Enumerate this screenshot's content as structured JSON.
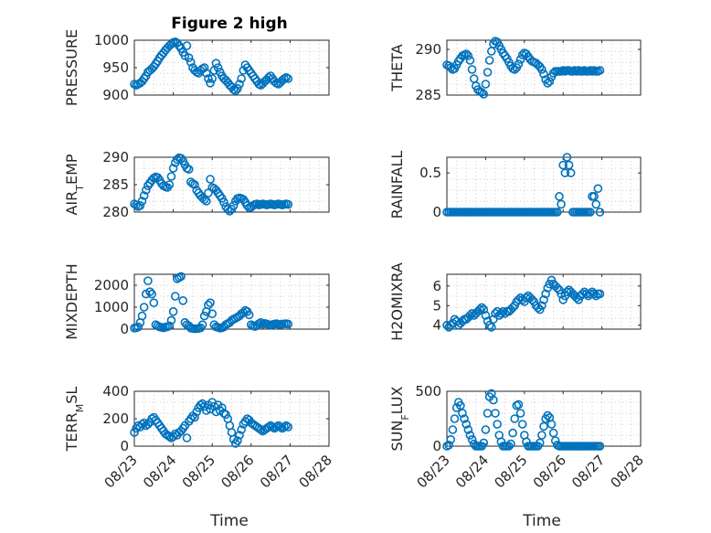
{
  "figure": {
    "title": "Figure 2 high",
    "marker_color": "#0072BD",
    "x_tick_labels": [
      "08/23",
      "08/24",
      "08/25",
      "08/26",
      "08/27",
      "08/28"
    ],
    "x_label": "Time"
  },
  "chart_data": [
    {
      "type": "scatter",
      "name": "pressure",
      "ylabel": "PRESSURE",
      "xlim": [
        0,
        5
      ],
      "ylim": [
        900,
        1000
      ],
      "yticks": [
        900,
        950,
        1000
      ],
      "x": [
        0.0,
        0.05,
        0.1,
        0.15,
        0.2,
        0.25,
        0.3,
        0.35,
        0.4,
        0.45,
        0.5,
        0.55,
        0.6,
        0.65,
        0.7,
        0.75,
        0.8,
        0.85,
        0.9,
        0.95,
        1.0,
        1.05,
        1.1,
        1.15,
        1.2,
        1.25,
        1.3,
        1.35,
        1.4,
        1.45,
        1.5,
        1.55,
        1.6,
        1.65,
        1.7,
        1.75,
        1.8,
        1.85,
        1.9,
        1.95,
        2.0,
        2.05,
        2.1,
        2.15,
        2.2,
        2.25,
        2.3,
        2.35,
        2.4,
        2.45,
        2.5,
        2.55,
        2.6,
        2.65,
        2.7,
        2.75,
        2.8,
        2.85,
        2.9,
        2.95,
        3.0,
        3.05,
        3.1,
        3.15,
        3.2,
        3.25,
        3.3,
        3.35,
        3.4,
        3.45,
        3.5,
        3.55,
        3.6,
        3.65,
        3.7,
        3.75,
        3.8,
        3.85,
        3.9,
        3.95
      ],
      "y": [
        920,
        918,
        920,
        922,
        925,
        930,
        935,
        942,
        945,
        948,
        952,
        957,
        962,
        968,
        973,
        977,
        982,
        986,
        990,
        993,
        996,
        997,
        995,
        990,
        985,
        978,
        972,
        990,
        968,
        960,
        950,
        945,
        942,
        940,
        945,
        948,
        950,
        940,
        930,
        922,
        930,
        945,
        958,
        950,
        942,
        935,
        930,
        927,
        923,
        918,
        915,
        910,
        908,
        912,
        920,
        930,
        945,
        955,
        950,
        945,
        940,
        935,
        930,
        925,
        920,
        918,
        921,
        925,
        928,
        932,
        935,
        930,
        925,
        922,
        920,
        923,
        927,
        930,
        932,
        930
      ]
    },
    {
      "type": "scatter",
      "name": "theta",
      "ylabel": "THETA",
      "xlim": [
        0,
        5
      ],
      "ylim": [
        285,
        291
      ],
      "yticks": [
        285,
        290
      ],
      "x": [
        0.0,
        0.05,
        0.1,
        0.15,
        0.2,
        0.25,
        0.3,
        0.35,
        0.4,
        0.45,
        0.5,
        0.55,
        0.6,
        0.65,
        0.7,
        0.75,
        0.8,
        0.85,
        0.9,
        0.95,
        1.0,
        1.05,
        1.1,
        1.15,
        1.2,
        1.25,
        1.3,
        1.35,
        1.4,
        1.45,
        1.5,
        1.55,
        1.6,
        1.65,
        1.7,
        1.75,
        1.8,
        1.85,
        1.9,
        1.95,
        2.0,
        2.05,
        2.1,
        2.15,
        2.2,
        2.25,
        2.3,
        2.35,
        2.4,
        2.45,
        2.5,
        2.55,
        2.6,
        2.65,
        2.7,
        2.75,
        2.8,
        2.85,
        2.9,
        2.95,
        3.0,
        3.05,
        3.1,
        3.15,
        3.2,
        3.25,
        3.3,
        3.35,
        3.4,
        3.45,
        3.5,
        3.55,
        3.6,
        3.65,
        3.7,
        3.75,
        3.8,
        3.85,
        3.9,
        3.95
      ],
      "y": [
        288.3,
        288.2,
        288.0,
        287.8,
        287.9,
        288.3,
        288.7,
        289.0,
        289.3,
        289.4,
        289.5,
        289.3,
        288.8,
        287.8,
        286.8,
        286.0,
        285.6,
        285.4,
        285.3,
        285.1,
        286.2,
        287.5,
        288.8,
        289.8,
        290.6,
        290.9,
        290.8,
        290.4,
        290.0,
        289.6,
        289.3,
        289.0,
        288.6,
        288.2,
        287.9,
        287.8,
        288.0,
        288.4,
        288.9,
        289.4,
        289.6,
        289.5,
        289.2,
        288.9,
        288.7,
        288.6,
        288.5,
        288.3,
        288.1,
        287.8,
        287.3,
        286.7,
        286.3,
        286.5,
        287.0,
        287.4,
        287.6,
        287.6,
        287.6,
        287.6,
        287.7,
        287.6,
        287.7,
        287.7,
        287.6,
        287.6,
        287.7,
        287.6,
        287.7,
        287.6,
        287.6,
        287.7,
        287.6,
        287.6,
        287.7,
        287.6,
        287.7,
        287.6,
        287.6,
        287.7
      ]
    },
    {
      "type": "scatter",
      "name": "airtemp",
      "ylabel": "AIR_TEMP",
      "xlim": [
        0,
        5
      ],
      "ylim": [
        280,
        290
      ],
      "yticks": [
        280,
        285,
        290
      ],
      "x": [
        0.0,
        0.05,
        0.1,
        0.15,
        0.2,
        0.25,
        0.3,
        0.35,
        0.4,
        0.45,
        0.5,
        0.55,
        0.6,
        0.65,
        0.7,
        0.75,
        0.8,
        0.85,
        0.9,
        0.95,
        1.0,
        1.05,
        1.1,
        1.15,
        1.2,
        1.25,
        1.3,
        1.35,
        1.4,
        1.45,
        1.5,
        1.55,
        1.6,
        1.65,
        1.7,
        1.75,
        1.8,
        1.85,
        1.9,
        1.95,
        2.0,
        2.05,
        2.1,
        2.15,
        2.2,
        2.25,
        2.3,
        2.35,
        2.4,
        2.45,
        2.5,
        2.55,
        2.6,
        2.65,
        2.7,
        2.75,
        2.8,
        2.85,
        2.9,
        2.95,
        3.0,
        3.05,
        3.1,
        3.15,
        3.2,
        3.25,
        3.3,
        3.35,
        3.4,
        3.45,
        3.5,
        3.55,
        3.6,
        3.65,
        3.7,
        3.75,
        3.8,
        3.85,
        3.9,
        3.95
      ],
      "y": [
        281.5,
        281.3,
        281.0,
        281.2,
        282.0,
        283.0,
        284.0,
        284.8,
        285.3,
        285.8,
        286.2,
        286.4,
        286.3,
        285.8,
        285.2,
        284.8,
        284.6,
        284.5,
        285.0,
        286.5,
        288.0,
        289.0,
        289.6,
        289.9,
        289.8,
        289.3,
        288.6,
        288.0,
        287.8,
        285.5,
        285.2,
        285.0,
        284.0,
        283.5,
        283.0,
        282.6,
        282.3,
        282.0,
        283.5,
        286.0,
        284.5,
        284.3,
        284.0,
        283.5,
        283.0,
        282.5,
        281.8,
        281.0,
        280.5,
        280.2,
        280.5,
        281.2,
        282.0,
        282.5,
        282.6,
        282.5,
        282.3,
        281.8,
        281.2,
        280.8,
        280.9,
        281.2,
        281.4,
        281.5,
        281.3,
        281.4,
        281.5,
        281.4,
        281.3,
        281.4,
        281.5,
        281.4,
        281.3,
        281.4,
        281.5,
        281.4,
        281.3,
        281.4,
        281.5,
        281.4
      ]
    },
    {
      "type": "scatter",
      "name": "rainfall",
      "ylabel": "RAINFALL",
      "xlim": [
        0,
        5
      ],
      "ylim": [
        0,
        0.7
      ],
      "yticks": [
        0,
        0.5
      ],
      "x": [
        0.0,
        0.05,
        0.1,
        0.15,
        0.2,
        0.25,
        0.3,
        0.35,
        0.4,
        0.45,
        0.5,
        0.55,
        0.6,
        0.65,
        0.7,
        0.75,
        0.8,
        0.85,
        0.9,
        0.95,
        1.0,
        1.05,
        1.1,
        1.15,
        1.2,
        1.25,
        1.3,
        1.35,
        1.4,
        1.45,
        1.5,
        1.55,
        1.6,
        1.65,
        1.7,
        1.75,
        1.8,
        1.85,
        1.9,
        1.95,
        2.0,
        2.05,
        2.1,
        2.15,
        2.2,
        2.25,
        2.3,
        2.35,
        2.4,
        2.45,
        2.5,
        2.55,
        2.6,
        2.65,
        2.7,
        2.75,
        2.8,
        2.85,
        2.9,
        2.95,
        3.0,
        3.05,
        3.1,
        3.15,
        3.2,
        3.25,
        3.3,
        3.35,
        3.4,
        3.45,
        3.5,
        3.55,
        3.6,
        3.65,
        3.7,
        3.75,
        3.8,
        3.85,
        3.9,
        3.95
      ],
      "y": [
        0,
        0,
        0,
        0,
        0,
        0,
        0,
        0,
        0,
        0,
        0,
        0,
        0,
        0,
        0,
        0,
        0,
        0,
        0,
        0,
        0,
        0,
        0,
        0,
        0,
        0,
        0,
        0,
        0,
        0,
        0,
        0,
        0,
        0,
        0,
        0,
        0,
        0,
        0,
        0,
        0,
        0,
        0,
        0,
        0,
        0,
        0,
        0,
        0,
        0,
        0,
        0,
        0,
        0,
        0,
        0,
        0,
        0,
        0.2,
        0.1,
        0.6,
        0.5,
        0.7,
        0.6,
        0.5,
        0,
        0,
        0,
        0,
        0,
        0,
        0,
        0,
        0,
        0,
        0.2,
        0.2,
        0.1,
        0.3,
        0
      ]
    },
    {
      "type": "scatter",
      "name": "mixdepth",
      "ylabel": "MIXDEPTH",
      "xlim": [
        0,
        5
      ],
      "ylim": [
        0,
        2500
      ],
      "yticks": [
        0,
        1000,
        2000
      ],
      "x": [
        0.0,
        0.05,
        0.1,
        0.15,
        0.2,
        0.25,
        0.3,
        0.35,
        0.4,
        0.45,
        0.5,
        0.55,
        0.6,
        0.65,
        0.7,
        0.75,
        0.8,
        0.85,
        0.9,
        0.95,
        1.0,
        1.05,
        1.1,
        1.15,
        1.2,
        1.25,
        1.3,
        1.35,
        1.4,
        1.45,
        1.5,
        1.55,
        1.6,
        1.65,
        1.7,
        1.75,
        1.8,
        1.85,
        1.9,
        1.95,
        2.0,
        2.05,
        2.1,
        2.15,
        2.2,
        2.25,
        2.3,
        2.35,
        2.4,
        2.45,
        2.5,
        2.55,
        2.6,
        2.65,
        2.7,
        2.75,
        2.8,
        2.85,
        2.9,
        2.95,
        3.0,
        3.05,
        3.1,
        3.15,
        3.2,
        3.25,
        3.3,
        3.35,
        3.4,
        3.45,
        3.5,
        3.55,
        3.6,
        3.65,
        3.7,
        3.75,
        3.8,
        3.85,
        3.9,
        3.95
      ],
      "y": [
        50,
        60,
        100,
        300,
        600,
        1000,
        1600,
        2200,
        1700,
        1600,
        1200,
        200,
        150,
        100,
        80,
        60,
        90,
        110,
        150,
        400,
        800,
        1500,
        2300,
        2350,
        2400,
        1300,
        300,
        200,
        150,
        50,
        30,
        20,
        25,
        30,
        60,
        200,
        600,
        800,
        1100,
        1200,
        700,
        200,
        100,
        80,
        50,
        60,
        100,
        200,
        250,
        300,
        400,
        450,
        500,
        550,
        600,
        700,
        750,
        850,
        800,
        650,
        200,
        150,
        120,
        180,
        250,
        300,
        220,
        260,
        240,
        200,
        180,
        210,
        230,
        250,
        220,
        200,
        230,
        240,
        250,
        230
      ]
    },
    {
      "type": "scatter",
      "name": "h2omixra",
      "ylabel": "H2OMIXRA",
      "xlim": [
        0,
        5
      ],
      "ylim": [
        3.8,
        6.6
      ],
      "yticks": [
        4,
        5,
        6
      ],
      "x": [
        0.0,
        0.05,
        0.1,
        0.15,
        0.2,
        0.25,
        0.3,
        0.35,
        0.4,
        0.45,
        0.5,
        0.55,
        0.6,
        0.65,
        0.7,
        0.75,
        0.8,
        0.85,
        0.9,
        0.95,
        1.0,
        1.05,
        1.1,
        1.15,
        1.2,
        1.25,
        1.3,
        1.35,
        1.4,
        1.45,
        1.5,
        1.55,
        1.6,
        1.65,
        1.7,
        1.75,
        1.8,
        1.85,
        1.9,
        1.95,
        2.0,
        2.05,
        2.1,
        2.15,
        2.2,
        2.25,
        2.3,
        2.35,
        2.4,
        2.45,
        2.5,
        2.55,
        2.6,
        2.65,
        2.7,
        2.75,
        2.8,
        2.85,
        2.9,
        2.95,
        3.0,
        3.05,
        3.1,
        3.15,
        3.2,
        3.25,
        3.3,
        3.35,
        3.4,
        3.45,
        3.5,
        3.55,
        3.6,
        3.65,
        3.7,
        3.75,
        3.8,
        3.85,
        3.9,
        3.95
      ],
      "y": [
        4.0,
        3.9,
        4.0,
        4.1,
        4.3,
        4.2,
        4.0,
        4.1,
        4.2,
        4.3,
        4.3,
        4.4,
        4.5,
        4.6,
        4.5,
        4.6,
        4.7,
        4.8,
        4.9,
        4.8,
        4.5,
        4.2,
        4.0,
        3.9,
        4.3,
        4.6,
        4.7,
        4.5,
        4.6,
        4.7,
        4.6,
        4.7,
        4.7,
        4.8,
        4.9,
        5.0,
        5.2,
        5.3,
        5.4,
        5.3,
        5.2,
        5.4,
        5.5,
        5.4,
        5.3,
        5.2,
        5.0,
        4.9,
        4.8,
        5.0,
        5.3,
        5.6,
        5.9,
        6.1,
        6.3,
        6.1,
        6.0,
        5.9,
        5.8,
        5.6,
        5.3,
        5.5,
        5.7,
        5.8,
        5.7,
        5.6,
        5.5,
        5.4,
        5.3,
        5.5,
        5.6,
        5.7,
        5.6,
        5.5,
        5.6,
        5.7,
        5.6,
        5.5,
        5.6,
        5.6
      ]
    },
    {
      "type": "scatter",
      "name": "terrmsl",
      "ylabel": "TERR_MSL",
      "xlim": [
        0,
        5
      ],
      "ylim": [
        0,
        400
      ],
      "yticks": [
        0,
        200,
        400
      ],
      "x": [
        0.0,
        0.05,
        0.1,
        0.15,
        0.2,
        0.25,
        0.3,
        0.35,
        0.4,
        0.45,
        0.5,
        0.55,
        0.6,
        0.65,
        0.7,
        0.75,
        0.8,
        0.85,
        0.9,
        0.95,
        1.0,
        1.05,
        1.1,
        1.15,
        1.2,
        1.25,
        1.3,
        1.35,
        1.4,
        1.45,
        1.5,
        1.55,
        1.6,
        1.65,
        1.7,
        1.75,
        1.8,
        1.85,
        1.9,
        1.95,
        2.0,
        2.05,
        2.1,
        2.15,
        2.2,
        2.25,
        2.3,
        2.35,
        2.4,
        2.45,
        2.5,
        2.55,
        2.6,
        2.65,
        2.7,
        2.75,
        2.8,
        2.85,
        2.9,
        2.95,
        3.0,
        3.05,
        3.1,
        3.15,
        3.2,
        3.25,
        3.3,
        3.35,
        3.4,
        3.45,
        3.5,
        3.55,
        3.6,
        3.65,
        3.7,
        3.75,
        3.8,
        3.85,
        3.9,
        3.95
      ],
      "y": [
        100,
        130,
        150,
        140,
        160,
        170,
        150,
        160,
        175,
        200,
        210,
        190,
        170,
        150,
        130,
        110,
        90,
        80,
        70,
        60,
        70,
        90,
        80,
        100,
        110,
        130,
        150,
        60,
        180,
        200,
        220,
        210,
        250,
        280,
        300,
        310,
        290,
        260,
        300,
        270,
        320,
        290,
        250,
        300,
        260,
        280,
        240,
        230,
        200,
        150,
        100,
        50,
        20,
        40,
        80,
        120,
        160,
        180,
        200,
        190,
        170,
        160,
        150,
        140,
        130,
        120,
        110,
        120,
        130,
        140,
        150,
        140,
        130,
        140,
        150,
        140,
        130,
        140,
        150,
        140
      ]
    },
    {
      "type": "scatter",
      "name": "sunflux",
      "ylabel": "SUN_FLUX",
      "xlim": [
        0,
        5
      ],
      "ylim": [
        0,
        500
      ],
      "yticks": [
        0,
        500
      ],
      "x": [
        0.0,
        0.05,
        0.1,
        0.15,
        0.2,
        0.25,
        0.3,
        0.35,
        0.4,
        0.45,
        0.5,
        0.55,
        0.6,
        0.65,
        0.7,
        0.75,
        0.8,
        0.85,
        0.9,
        0.95,
        1.0,
        1.05,
        1.1,
        1.15,
        1.2,
        1.25,
        1.3,
        1.35,
        1.4,
        1.45,
        1.5,
        1.55,
        1.6,
        1.65,
        1.7,
        1.75,
        1.8,
        1.85,
        1.9,
        1.95,
        2.0,
        2.05,
        2.1,
        2.15,
        2.2,
        2.25,
        2.3,
        2.35,
        2.4,
        2.45,
        2.5,
        2.55,
        2.6,
        2.65,
        2.7,
        2.75,
        2.8,
        2.85,
        2.9,
        2.95,
        3.0,
        3.05,
        3.1,
        3.15,
        3.2,
        3.25,
        3.3,
        3.35,
        3.4,
        3.45,
        3.5,
        3.55,
        3.6,
        3.65,
        3.7,
        3.75,
        3.8,
        3.85,
        3.9,
        3.95
      ],
      "y": [
        0,
        10,
        60,
        150,
        250,
        350,
        400,
        370,
        300,
        250,
        200,
        150,
        100,
        60,
        20,
        0,
        0,
        0,
        0,
        30,
        150,
        300,
        450,
        480,
        420,
        300,
        200,
        100,
        40,
        0,
        0,
        0,
        0,
        20,
        120,
        250,
        370,
        380,
        300,
        200,
        100,
        40,
        0,
        0,
        0,
        0,
        0,
        0,
        30,
        100,
        180,
        250,
        280,
        260,
        200,
        120,
        50,
        10,
        0,
        0,
        0,
        0,
        0,
        0,
        0,
        0,
        0,
        0,
        0,
        0,
        0,
        0,
        0,
        0,
        0,
        0,
        0,
        0,
        0,
        0
      ]
    }
  ]
}
